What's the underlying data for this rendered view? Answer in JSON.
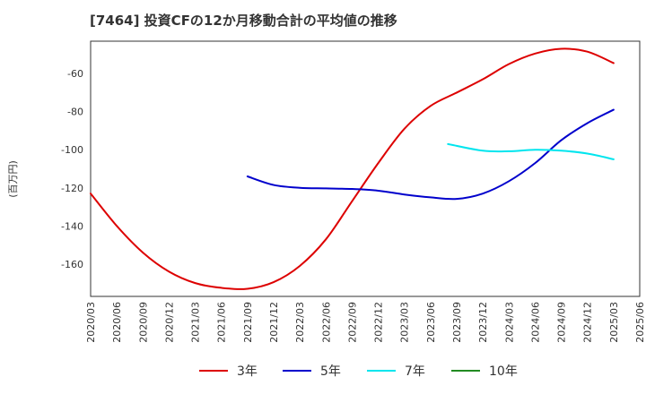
{
  "chart_data": {
    "type": "line",
    "title": "[7464]  投資CFの12か月移動合計の平均値の推移",
    "ylabel": "(百万円)",
    "xlabel": "",
    "ylim": [
      -177,
      -43
    ],
    "yticks": [
      -60,
      -80,
      -100,
      -120,
      -140,
      -160
    ],
    "x_tick_labels": [
      "2020/03",
      "2020/06",
      "2020/09",
      "2020/12",
      "2021/03",
      "2021/06",
      "2021/09",
      "2021/12",
      "2022/03",
      "2022/06",
      "2022/09",
      "2022/12",
      "2023/03",
      "2023/06",
      "2023/09",
      "2023/12",
      "2024/03",
      "2024/06",
      "2024/09",
      "2024/12",
      "2025/03",
      "2025/06"
    ],
    "grid": true,
    "legend_position": "bottom",
    "series": [
      {
        "name": "3年",
        "color": "#dd0000",
        "points": [
          [
            "2020/03",
            -123
          ],
          [
            "2020/06",
            -140
          ],
          [
            "2020/09",
            -154
          ],
          [
            "2020/12",
            -164
          ],
          [
            "2021/03",
            -170
          ],
          [
            "2021/06",
            -172.5
          ],
          [
            "2021/09",
            -173
          ],
          [
            "2021/12",
            -169.5
          ],
          [
            "2022/03",
            -161
          ],
          [
            "2022/06",
            -147
          ],
          [
            "2022/09",
            -127
          ],
          [
            "2022/12",
            -107
          ],
          [
            "2023/03",
            -89
          ],
          [
            "2023/06",
            -77
          ],
          [
            "2023/09",
            -70
          ],
          [
            "2023/12",
            -63
          ],
          [
            "2024/03",
            -55
          ],
          [
            "2024/06",
            -49.5
          ],
          [
            "2024/09",
            -47
          ],
          [
            "2024/12",
            -48.5
          ],
          [
            "2025/03",
            -54.5
          ]
        ]
      },
      {
        "name": "5年",
        "color": "#0000cc",
        "points": [
          [
            "2021/09",
            -114
          ],
          [
            "2021/12",
            -118.5
          ],
          [
            "2022/03",
            -120
          ],
          [
            "2022/06",
            -120.3
          ],
          [
            "2022/09",
            -120.6
          ],
          [
            "2022/12",
            -121.5
          ],
          [
            "2023/03",
            -123.5
          ],
          [
            "2023/06",
            -125
          ],
          [
            "2023/09",
            -125.8
          ],
          [
            "2023/12",
            -123
          ],
          [
            "2024/03",
            -116.5
          ],
          [
            "2024/06",
            -107
          ],
          [
            "2024/09",
            -95
          ],
          [
            "2024/12",
            -86
          ],
          [
            "2025/03",
            -79
          ]
        ]
      },
      {
        "name": "7年",
        "color": "#00e5ee",
        "points": [
          [
            "2023/08",
            -97
          ],
          [
            "2023/12",
            -100.5
          ],
          [
            "2024/03",
            -100.8
          ],
          [
            "2024/06",
            -100
          ],
          [
            "2024/09",
            -100.5
          ],
          [
            "2024/12",
            -102
          ],
          [
            "2025/03",
            -105
          ]
        ]
      },
      {
        "name": "10年",
        "color": "#228b22",
        "points": []
      }
    ]
  }
}
